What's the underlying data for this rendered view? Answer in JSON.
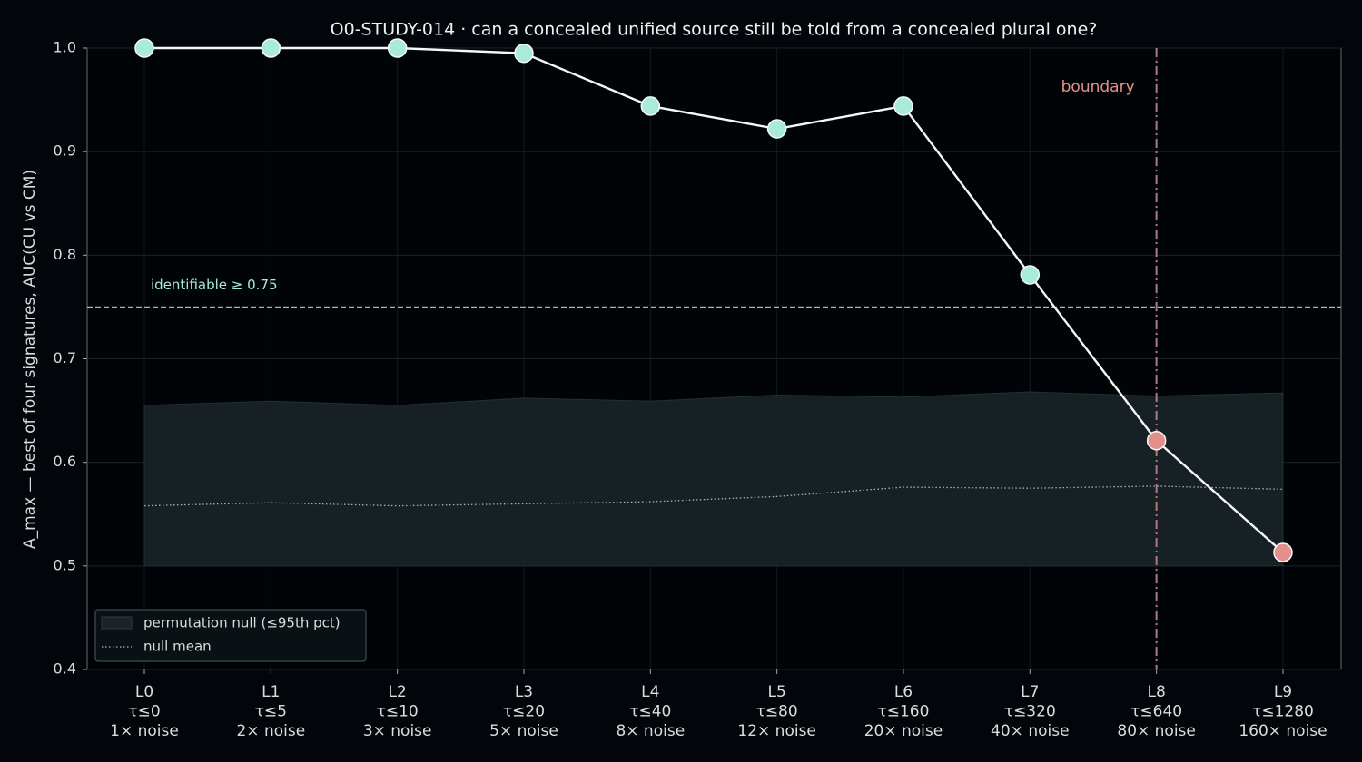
{
  "chart_data": {
    "type": "line",
    "title": "O0-STUDY-014 · can a concealed unified source still be told from a concealed plural one?",
    "ylabel": "A_max — best of four signatures, AUC(CU vs CM)",
    "categories": [
      [
        "L0",
        "τ≤0",
        "1× noise"
      ],
      [
        "L1",
        "τ≤5",
        "2× noise"
      ],
      [
        "L2",
        "τ≤10",
        "3× noise"
      ],
      [
        "L3",
        "τ≤20",
        "5× noise"
      ],
      [
        "L4",
        "τ≤40",
        "8× noise"
      ],
      [
        "L5",
        "τ≤80",
        "12× noise"
      ],
      [
        "L6",
        "τ≤160",
        "20× noise"
      ],
      [
        "L7",
        "τ≤320",
        "40× noise"
      ],
      [
        "L8",
        "τ≤640",
        "80× noise"
      ],
      [
        "L9",
        "τ≤1280",
        "160× noise"
      ]
    ],
    "values": [
      1.0,
      1.0,
      1.0,
      0.995,
      0.944,
      0.922,
      0.944,
      0.781,
      0.621,
      0.513
    ],
    "color": "#f4f8f7",
    "marker_colors": [
      "#a8ecd8",
      "#a8ecd8",
      "#a8ecd8",
      "#a8ecd8",
      "#a8ecd8",
      "#a8ecd8",
      "#a8ecd8",
      "#a8ecd8",
      "#e58f8a",
      "#e58f8a"
    ],
    "null_band": {
      "name": "permutation null (≤95th pct)",
      "lower": [
        0.5,
        0.5,
        0.5,
        0.5,
        0.5,
        0.5,
        0.5,
        0.5,
        0.5,
        0.5
      ],
      "upper": [
        0.655,
        0.659,
        0.655,
        0.662,
        0.659,
        0.665,
        0.663,
        0.668,
        0.664,
        0.667
      ],
      "color": "#1a2428"
    },
    "null_mean": {
      "name": "null mean",
      "values": [
        0.558,
        0.561,
        0.558,
        0.56,
        0.562,
        0.567,
        0.576,
        0.575,
        0.577,
        0.574
      ],
      "color": "#9fb8b8"
    },
    "threshold": {
      "value": 0.75,
      "label": "identifiable ≥ 0.75",
      "color": "#9fb8b8",
      "label_color": "#a8ecd8"
    },
    "boundary": {
      "x": 8,
      "label": "boundary",
      "color": "#b07a7a",
      "label_color": "#e58f8a"
    },
    "ylim": [
      0.4,
      1.0
    ],
    "yticks": [
      0.4,
      0.5,
      0.6,
      0.7,
      0.8,
      0.9,
      {
        "value": 1.0,
        "label": "1.0"
      }
    ],
    "grid": true,
    "legend": "lower left"
  }
}
